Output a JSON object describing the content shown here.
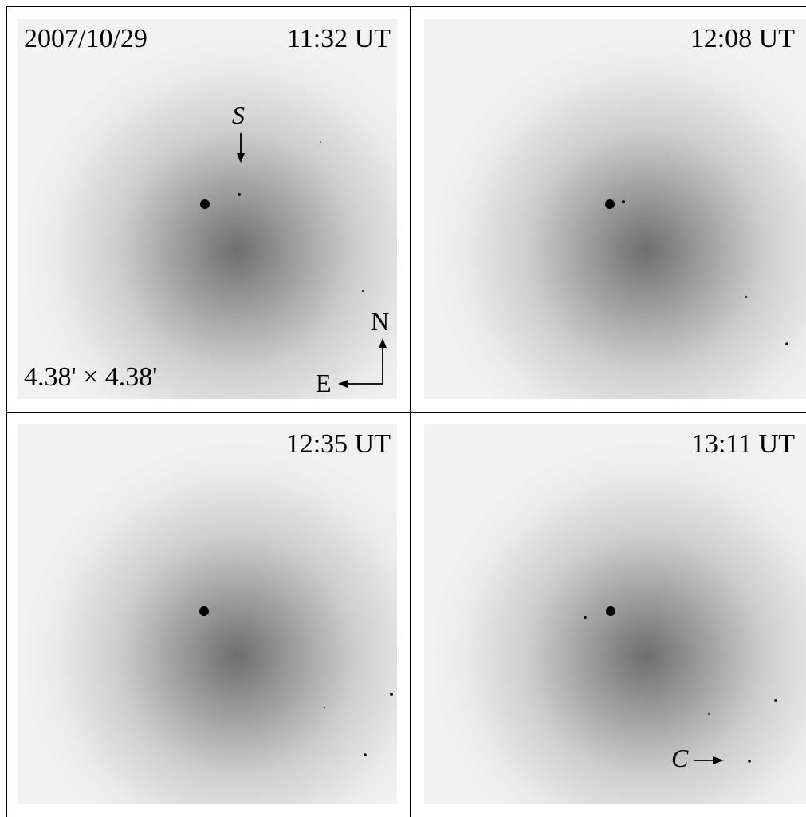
{
  "panels": [
    {
      "date": "2007/10/29",
      "time": "11:32 UT",
      "scale": "4.38' × 4.38'",
      "marker": "S",
      "north": "N",
      "east": "E"
    },
    {
      "time": "12:08 UT"
    },
    {
      "time": "12:35 UT"
    },
    {
      "time": "13:11 UT",
      "marker": "C"
    }
  ],
  "colors": {
    "background": "#ffffff",
    "sky": "#f1f1f1",
    "coma_core": "#6e6e6e",
    "frame": "#000000"
  }
}
